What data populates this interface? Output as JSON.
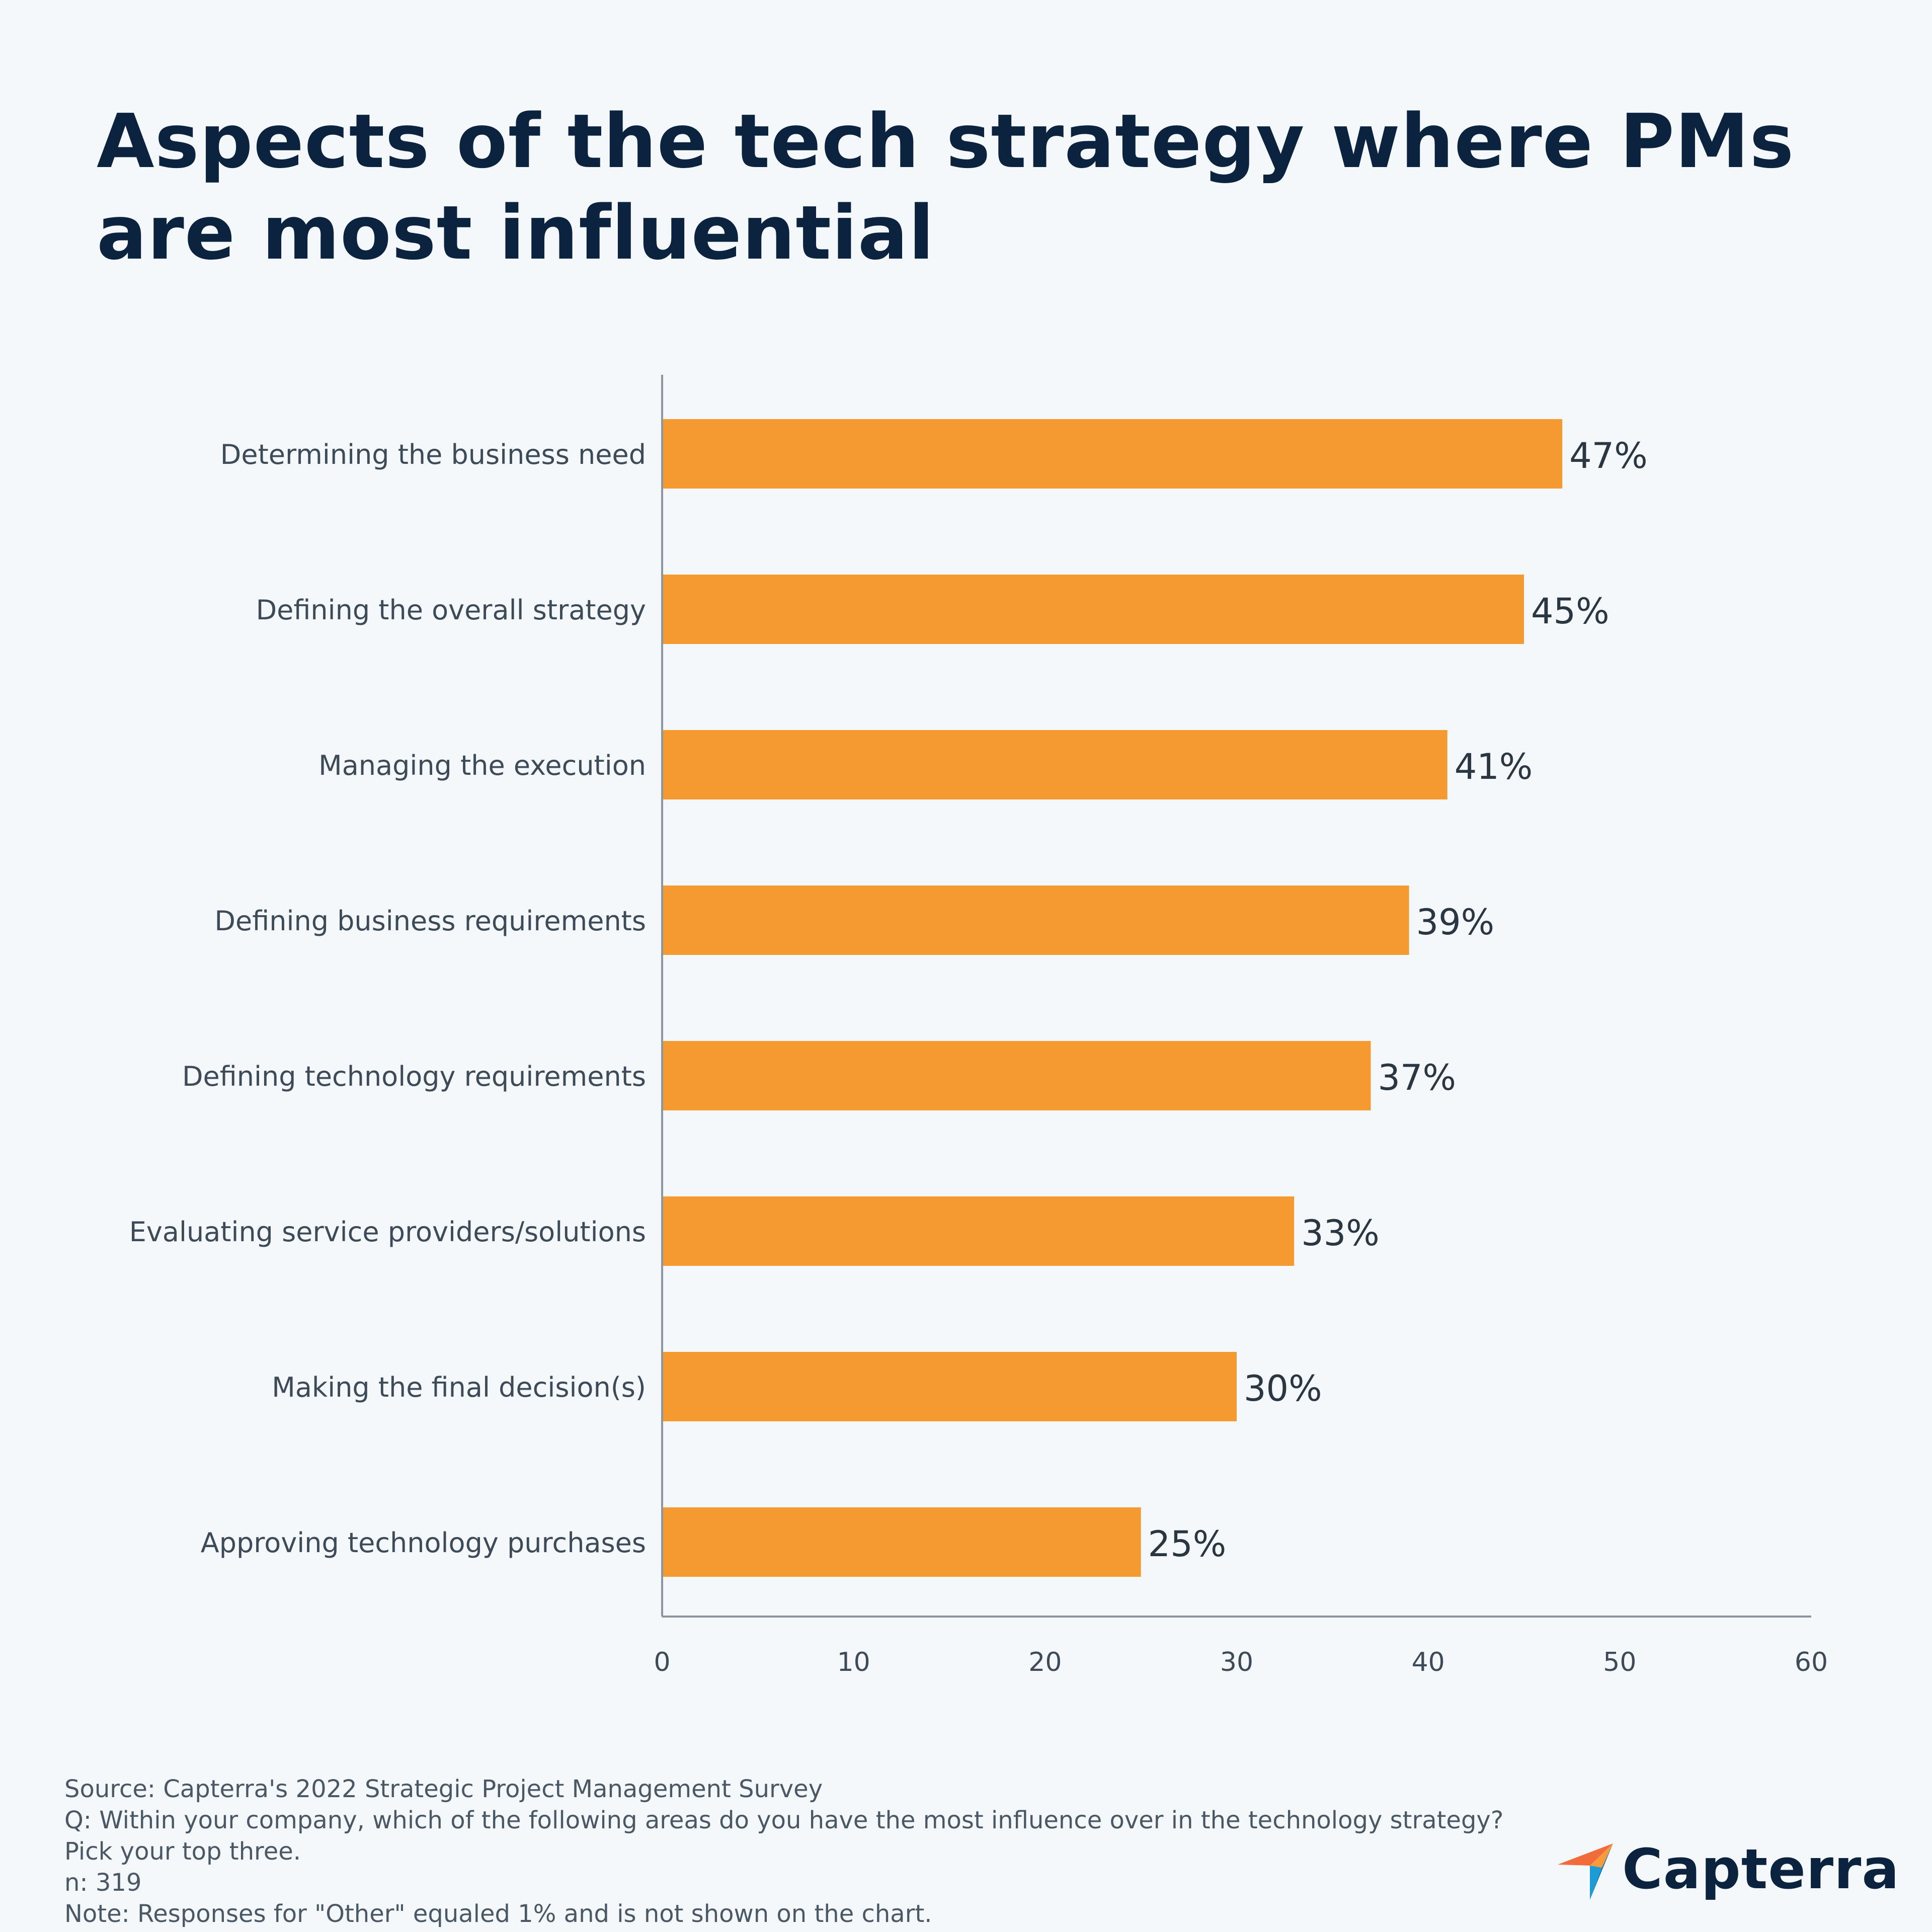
{
  "title": "Aspects of the tech strategy where PMs are most influential",
  "colors": {
    "bar": "#f59a30",
    "title": "#0c2340",
    "axis": "#8c96a0",
    "label": "#3d4a57",
    "value_label": "#2b3643",
    "background": "#f5f8fb",
    "logo_blue": "#1d9bd7",
    "logo_orange": "#f26b3a",
    "logo_navy": "#0c2340"
  },
  "chart_data": {
    "type": "bar",
    "orientation": "horizontal",
    "title": "Aspects of the tech strategy where PMs are most influential",
    "categories": [
      "Determining the business need",
      "Defining the overall strategy",
      "Managing the execution",
      "Defining business requirements",
      "Defining technology requirements",
      "Evaluating service providers/solutions",
      "Making the final decision(s)",
      "Approving technology purchases"
    ],
    "values": [
      47,
      45,
      41,
      39,
      37,
      33,
      30,
      25
    ],
    "value_labels": [
      "47%",
      "45%",
      "41%",
      "39%",
      "37%",
      "33%",
      "30%",
      "25%"
    ],
    "xlim": [
      0,
      60
    ],
    "xticks": [
      0,
      10,
      20,
      30,
      40,
      50,
      60
    ],
    "xtick_labels": [
      "0",
      "10",
      "20",
      "30",
      "40",
      "50",
      "60"
    ],
    "xlabel": "",
    "ylabel": "",
    "grid": false,
    "legend": "none"
  },
  "footnote": {
    "source": "Source: Capterra's 2022 Strategic Project Management Survey",
    "question_line1": "Q: Within your company, which of the following areas do you have the most influence over in the technology strategy?",
    "question_line2": "Pick your top three.",
    "n": "n: 319",
    "note": "Note: Responses for \"Other\" equaled 1% and is not shown on the chart."
  },
  "logo": {
    "text": "Capterra",
    "icon": "capterra-arrow-icon"
  }
}
